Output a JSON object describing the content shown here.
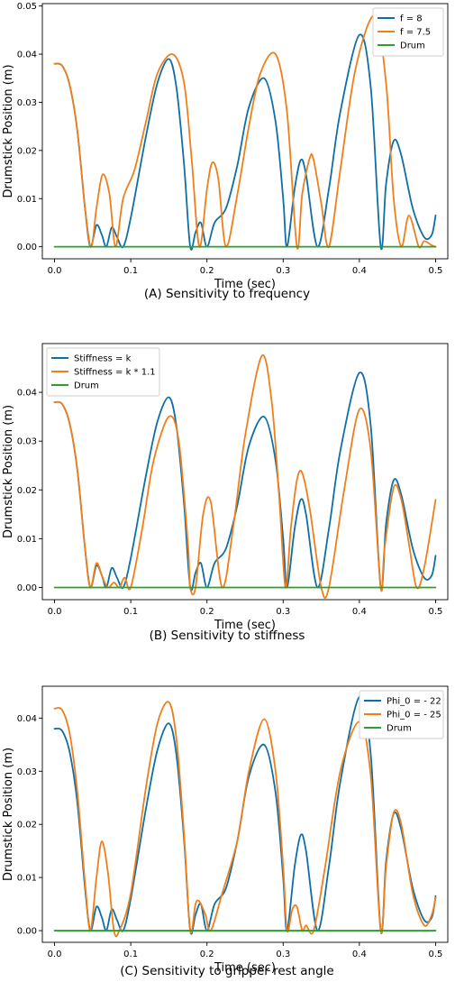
{
  "colors": {
    "series_1": "#1f77b4",
    "series_2": "#ff7f0e",
    "drum": "#2ca02c",
    "series_1_display": "#0e6fa6",
    "series_2_display": "#f07f1a"
  },
  "chart_data": [
    {
      "type": "line",
      "caption": "(A) Sensitivity to frequency",
      "xlabel": "Time (sec)",
      "ylabel": "Drumstick Position (m)",
      "xlim": [
        -0.016,
        0.516
      ],
      "ylim": [
        -0.0025,
        0.0505
      ],
      "xticks": [
        0.0,
        0.1,
        0.2,
        0.3,
        0.4,
        0.5
      ],
      "xtick_labels": [
        "0.0",
        "0.1",
        "0.2",
        "0.3",
        "0.4",
        "0.5"
      ],
      "yticks": [
        0.0,
        0.01,
        0.02,
        0.03,
        0.04,
        0.05
      ],
      "ytick_labels": [
        "0.00",
        "0.01",
        "0.02",
        "0.03",
        "0.04",
        "0.05"
      ],
      "legend_position": "upper right",
      "grid": false,
      "series": [
        {
          "name": "f = 8",
          "color": "#0e6fa6",
          "x": [
            0.0,
            0.01,
            0.02,
            0.03,
            0.04,
            0.047,
            0.055,
            0.062,
            0.068,
            0.075,
            0.082,
            0.09,
            0.1,
            0.12,
            0.135,
            0.15,
            0.16,
            0.17,
            0.178,
            0.185,
            0.192,
            0.2,
            0.21,
            0.225,
            0.24,
            0.255,
            0.275,
            0.29,
            0.3,
            0.305,
            0.315,
            0.323,
            0.33,
            0.345,
            0.36,
            0.375,
            0.4,
            0.415,
            0.428,
            0.435,
            0.445,
            0.455,
            0.47,
            0.485,
            0.495,
            0.5
          ],
          "y": [
            0.038,
            0.0376,
            0.0335,
            0.024,
            0.008,
            0.0,
            0.0045,
            0.0025,
            0.0,
            0.004,
            0.002,
            0.0,
            0.006,
            0.023,
            0.034,
            0.039,
            0.033,
            0.017,
            0.0,
            0.003,
            0.005,
            0.0,
            0.005,
            0.008,
            0.017,
            0.029,
            0.035,
            0.026,
            0.01,
            0.0,
            0.012,
            0.018,
            0.015,
            0.0,
            0.012,
            0.028,
            0.044,
            0.033,
            0.0,
            0.013,
            0.022,
            0.019,
            0.008,
            0.002,
            0.0025,
            0.0065
          ]
        },
        {
          "name": "f = 7.5",
          "color": "#f07f1a",
          "x": [
            0.0,
            0.01,
            0.02,
            0.03,
            0.04,
            0.048,
            0.055,
            0.063,
            0.072,
            0.08,
            0.09,
            0.105,
            0.12,
            0.135,
            0.155,
            0.17,
            0.18,
            0.19,
            0.2,
            0.207,
            0.215,
            0.225,
            0.24,
            0.255,
            0.27,
            0.29,
            0.305,
            0.318,
            0.325,
            0.335,
            0.34,
            0.35,
            0.36,
            0.375,
            0.395,
            0.42,
            0.435,
            0.445,
            0.455,
            0.465,
            0.478,
            0.485,
            0.495,
            0.5
          ],
          "y": [
            0.038,
            0.0376,
            0.0335,
            0.024,
            0.008,
            0.0,
            0.008,
            0.015,
            0.011,
            0.0,
            0.01,
            0.016,
            0.026,
            0.036,
            0.04,
            0.034,
            0.018,
            0.0,
            0.012,
            0.0175,
            0.014,
            0.0,
            0.011,
            0.025,
            0.036,
            0.04,
            0.028,
            0.0,
            0.011,
            0.0185,
            0.018,
            0.009,
            0.0,
            0.016,
            0.037,
            0.048,
            0.034,
            0.01,
            0.0,
            0.0065,
            0.0,
            0.0012,
            0.0003,
            0.0
          ]
        },
        {
          "name": "Drum",
          "color": "#2ca02c",
          "x": [
            0.0,
            0.5
          ],
          "y": [
            0.0,
            0.0
          ]
        }
      ]
    },
    {
      "type": "line",
      "caption": "(B) Sensitivity to stiffness",
      "xlabel": "Time (sec)",
      "ylabel": "Drumstick Position (m)",
      "xlim": [
        -0.016,
        0.516
      ],
      "ylim": [
        -0.0025,
        0.05
      ],
      "xticks": [
        0.0,
        0.1,
        0.2,
        0.3,
        0.4,
        0.5
      ],
      "xtick_labels": [
        "0.0",
        "0.1",
        "0.2",
        "0.3",
        "0.4",
        "0.5"
      ],
      "yticks": [
        0.0,
        0.01,
        0.02,
        0.03,
        0.04
      ],
      "ytick_labels": [
        "0.00",
        "0.01",
        "0.02",
        "0.03",
        "0.04"
      ],
      "legend_position": "upper left",
      "grid": false,
      "series": [
        {
          "name": "Stiffness = k",
          "color": "#0e6fa6",
          "x": [
            0.0,
            0.01,
            0.02,
            0.03,
            0.04,
            0.047,
            0.055,
            0.062,
            0.068,
            0.075,
            0.082,
            0.09,
            0.1,
            0.12,
            0.135,
            0.15,
            0.16,
            0.17,
            0.178,
            0.185,
            0.192,
            0.2,
            0.21,
            0.225,
            0.24,
            0.255,
            0.275,
            0.29,
            0.3,
            0.305,
            0.315,
            0.323,
            0.33,
            0.345,
            0.36,
            0.375,
            0.4,
            0.415,
            0.428,
            0.435,
            0.445,
            0.455,
            0.47,
            0.485,
            0.495,
            0.5
          ],
          "y": [
            0.038,
            0.0376,
            0.0335,
            0.024,
            0.008,
            0.0,
            0.0045,
            0.0025,
            0.0,
            0.004,
            0.002,
            0.0,
            0.006,
            0.023,
            0.034,
            0.039,
            0.033,
            0.017,
            0.0,
            0.003,
            0.005,
            0.0,
            0.005,
            0.008,
            0.017,
            0.029,
            0.035,
            0.026,
            0.01,
            0.0,
            0.012,
            0.018,
            0.015,
            0.0,
            0.012,
            0.028,
            0.044,
            0.033,
            0.0,
            0.013,
            0.022,
            0.019,
            0.008,
            0.002,
            0.0025,
            0.0065
          ]
        },
        {
          "name": "Stiffness = k * 1.1",
          "color": "#f07f1a",
          "x": [
            0.0,
            0.01,
            0.02,
            0.03,
            0.04,
            0.047,
            0.055,
            0.063,
            0.07,
            0.078,
            0.085,
            0.092,
            0.1,
            0.115,
            0.13,
            0.15,
            0.163,
            0.175,
            0.178,
            0.185,
            0.195,
            0.205,
            0.22,
            0.235,
            0.25,
            0.272,
            0.285,
            0.295,
            0.303,
            0.31,
            0.318,
            0.325,
            0.335,
            0.35,
            0.36,
            0.38,
            0.4,
            0.415,
            0.428,
            0.433,
            0.445,
            0.455,
            0.465,
            0.475,
            0.485,
            0.5
          ],
          "y": [
            0.038,
            0.0376,
            0.0335,
            0.024,
            0.008,
            0.0,
            0.005,
            0.002,
            0.0,
            0.001,
            0.0,
            0.002,
            0.0,
            0.012,
            0.026,
            0.035,
            0.03,
            0.009,
            0.0,
            0.0,
            0.015,
            0.0175,
            0.0,
            0.013,
            0.031,
            0.0475,
            0.038,
            0.018,
            0.0,
            0.012,
            0.022,
            0.0235,
            0.016,
            0.0,
            0.0,
            0.02,
            0.0365,
            0.028,
            0.0,
            0.008,
            0.0205,
            0.018,
            0.009,
            0.0,
            0.004,
            0.018
          ]
        },
        {
          "name": "Drum",
          "color": "#2ca02c",
          "x": [
            0.0,
            0.5
          ],
          "y": [
            0.0,
            0.0
          ]
        }
      ]
    },
    {
      "type": "line",
      "caption": "(C) Sensitivity to gripper rest angle",
      "xlabel": "Time (sec)",
      "ylabel": "Drumstick Position (m)",
      "xlim": [
        -0.016,
        0.516
      ],
      "ylim": [
        -0.0022,
        0.046
      ],
      "xticks": [
        0.0,
        0.1,
        0.2,
        0.3,
        0.4,
        0.5
      ],
      "xtick_labels": [
        "0.0",
        "0.1",
        "0.2",
        "0.3",
        "0.4",
        "0.5"
      ],
      "yticks": [
        0.0,
        0.01,
        0.02,
        0.03,
        0.04
      ],
      "ytick_labels": [
        "0.00",
        "0.01",
        "0.02",
        "0.03",
        "0.04"
      ],
      "legend_position": "upper right",
      "grid": false,
      "series": [
        {
          "name": "Phi_0 = - 22",
          "color": "#0e6fa6",
          "x": [
            0.0,
            0.01,
            0.02,
            0.03,
            0.04,
            0.047,
            0.055,
            0.062,
            0.068,
            0.075,
            0.082,
            0.09,
            0.1,
            0.12,
            0.135,
            0.15,
            0.16,
            0.17,
            0.178,
            0.185,
            0.192,
            0.2,
            0.21,
            0.225,
            0.24,
            0.255,
            0.275,
            0.29,
            0.3,
            0.305,
            0.315,
            0.323,
            0.33,
            0.345,
            0.36,
            0.375,
            0.4,
            0.415,
            0.428,
            0.435,
            0.445,
            0.455,
            0.47,
            0.485,
            0.495,
            0.5
          ],
          "y": [
            0.038,
            0.0376,
            0.0335,
            0.024,
            0.008,
            0.0,
            0.0045,
            0.0025,
            0.0,
            0.004,
            0.002,
            0.0,
            0.006,
            0.023,
            0.034,
            0.039,
            0.033,
            0.017,
            0.0,
            0.003,
            0.005,
            0.0,
            0.005,
            0.008,
            0.017,
            0.029,
            0.035,
            0.026,
            0.01,
            0.0,
            0.012,
            0.018,
            0.015,
            0.0,
            0.012,
            0.028,
            0.044,
            0.033,
            0.0,
            0.013,
            0.022,
            0.019,
            0.008,
            0.002,
            0.0025,
            0.0065
          ]
        },
        {
          "name": "Phi_0 = - 25",
          "color": "#f07f1a",
          "x": [
            0.0,
            0.01,
            0.02,
            0.03,
            0.04,
            0.047,
            0.055,
            0.062,
            0.07,
            0.078,
            0.085,
            0.1,
            0.12,
            0.135,
            0.15,
            0.16,
            0.17,
            0.178,
            0.185,
            0.19,
            0.198,
            0.205,
            0.22,
            0.24,
            0.255,
            0.275,
            0.29,
            0.3,
            0.305,
            0.312,
            0.318,
            0.325,
            0.33,
            0.34,
            0.355,
            0.375,
            0.4,
            0.415,
            0.428,
            0.435,
            0.445,
            0.455,
            0.47,
            0.485,
            0.495,
            0.5
          ],
          "y": [
            0.0418,
            0.0415,
            0.037,
            0.026,
            0.009,
            0.0,
            0.01,
            0.0168,
            0.011,
            0.0,
            0.0,
            0.007,
            0.027,
            0.039,
            0.043,
            0.036,
            0.018,
            0.0,
            0.005,
            0.0055,
            0.003,
            0.0,
            0.007,
            0.017,
            0.03,
            0.0398,
            0.03,
            0.012,
            0.0,
            0.004,
            0.0045,
            0.0,
            0.001,
            0.0,
            0.012,
            0.03,
            0.0393,
            0.029,
            0.0,
            0.012,
            0.0222,
            0.02,
            0.007,
            0.001,
            0.003,
            0.0062
          ]
        },
        {
          "name": "Drum",
          "color": "#2ca02c",
          "x": [
            0.0,
            0.5
          ],
          "y": [
            0.0,
            0.0
          ]
        }
      ]
    }
  ]
}
